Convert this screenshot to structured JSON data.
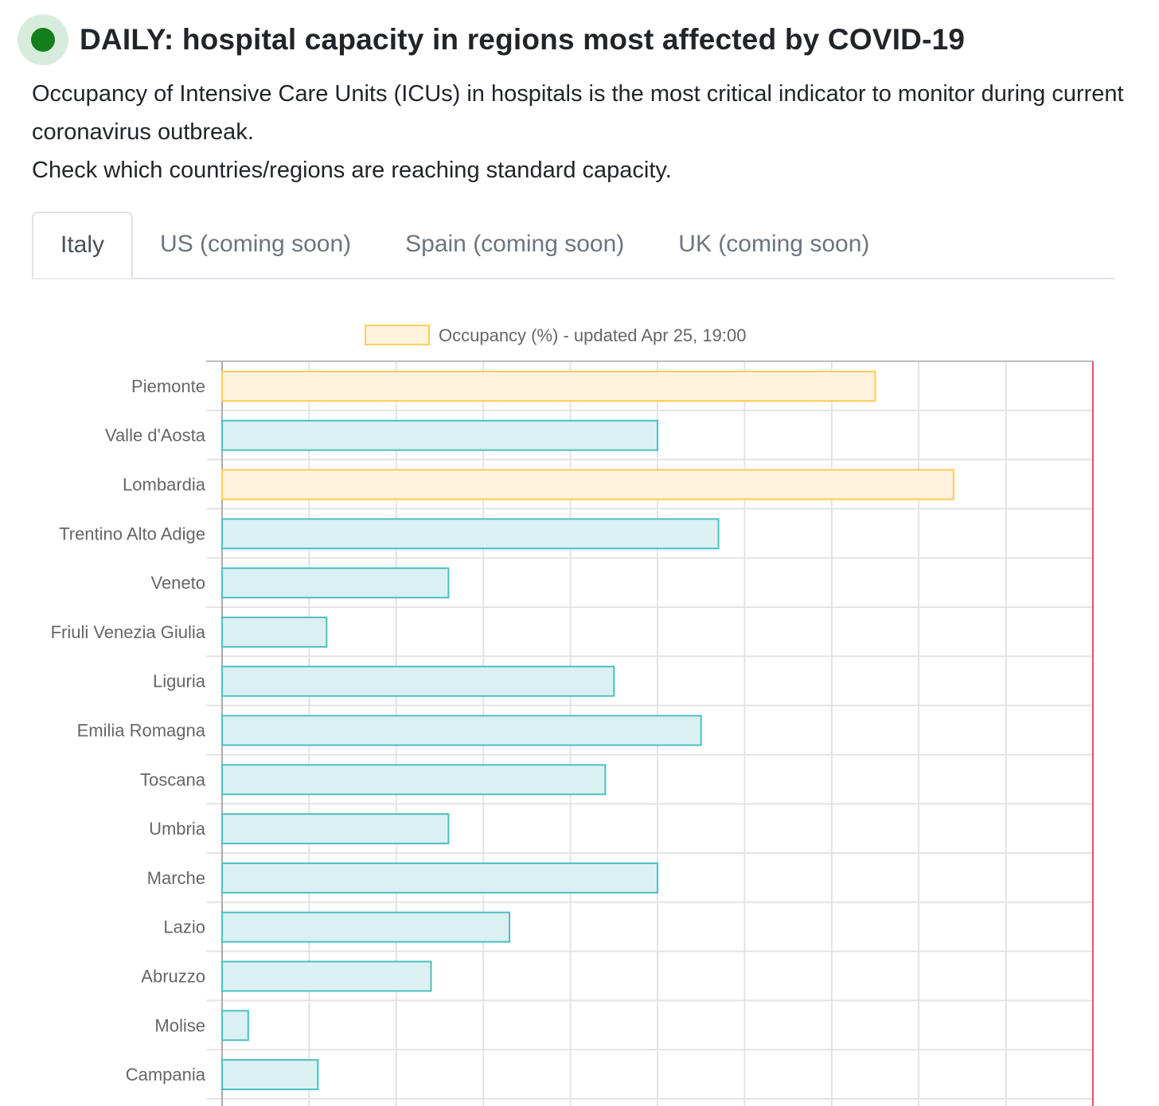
{
  "header": {
    "status_icon": "green-status-dot",
    "title": "DAILY: hospital capacity in regions most affected by COVID-19"
  },
  "description": {
    "line1": "Occupancy of Intensive Care Units (ICUs) in hospitals is the most critical indicator to monitor during current coronavirus outbreak.",
    "line2": "Check which countries/regions are reaching standard capacity."
  },
  "tabs": [
    {
      "label": "Italy",
      "active": true
    },
    {
      "label": "US (coming soon)",
      "active": false
    },
    {
      "label": "Spain (coming soon)",
      "active": false
    },
    {
      "label": "UK (coming soon)",
      "active": false
    }
  ],
  "colors": {
    "normal_fill": "#dbf0f2",
    "normal_border": "#4bc0c0",
    "warning_fill": "#fff3de",
    "warning_border": "#ffcd56",
    "capacity_line": "#ee4f74",
    "grid": "#e3e3e3",
    "status_green": "#137e1b"
  },
  "chart_data": {
    "type": "bar",
    "orientation": "horizontal",
    "legend": [
      {
        "label": "Occupancy (%) - updated Apr 25, 19:00",
        "color": "#ffcd56"
      }
    ],
    "legend_position": "top",
    "categories": [
      "Piemonte",
      "Valle d'Aosta",
      "Lombardia",
      "Trentino Alto Adige",
      "Veneto",
      "Friuli Venezia Giulia",
      "Liguria",
      "Emilia Romagna",
      "Toscana",
      "Umbria",
      "Marche",
      "Lazio",
      "Abruzzo",
      "Molise",
      "Campania"
    ],
    "series": [
      {
        "name": "Occupancy (%)",
        "values": [
          75,
          50,
          84,
          57,
          26,
          12,
          45,
          55,
          44,
          26,
          50,
          33,
          24,
          3,
          11
        ]
      }
    ],
    "highlight": [
      true,
      false,
      true,
      false,
      false,
      false,
      false,
      false,
      false,
      false,
      false,
      false,
      false,
      false,
      false
    ],
    "xlim": [
      0,
      100
    ],
    "capacity_line_value": 100,
    "grid": true,
    "xlabel": "",
    "ylabel": ""
  }
}
